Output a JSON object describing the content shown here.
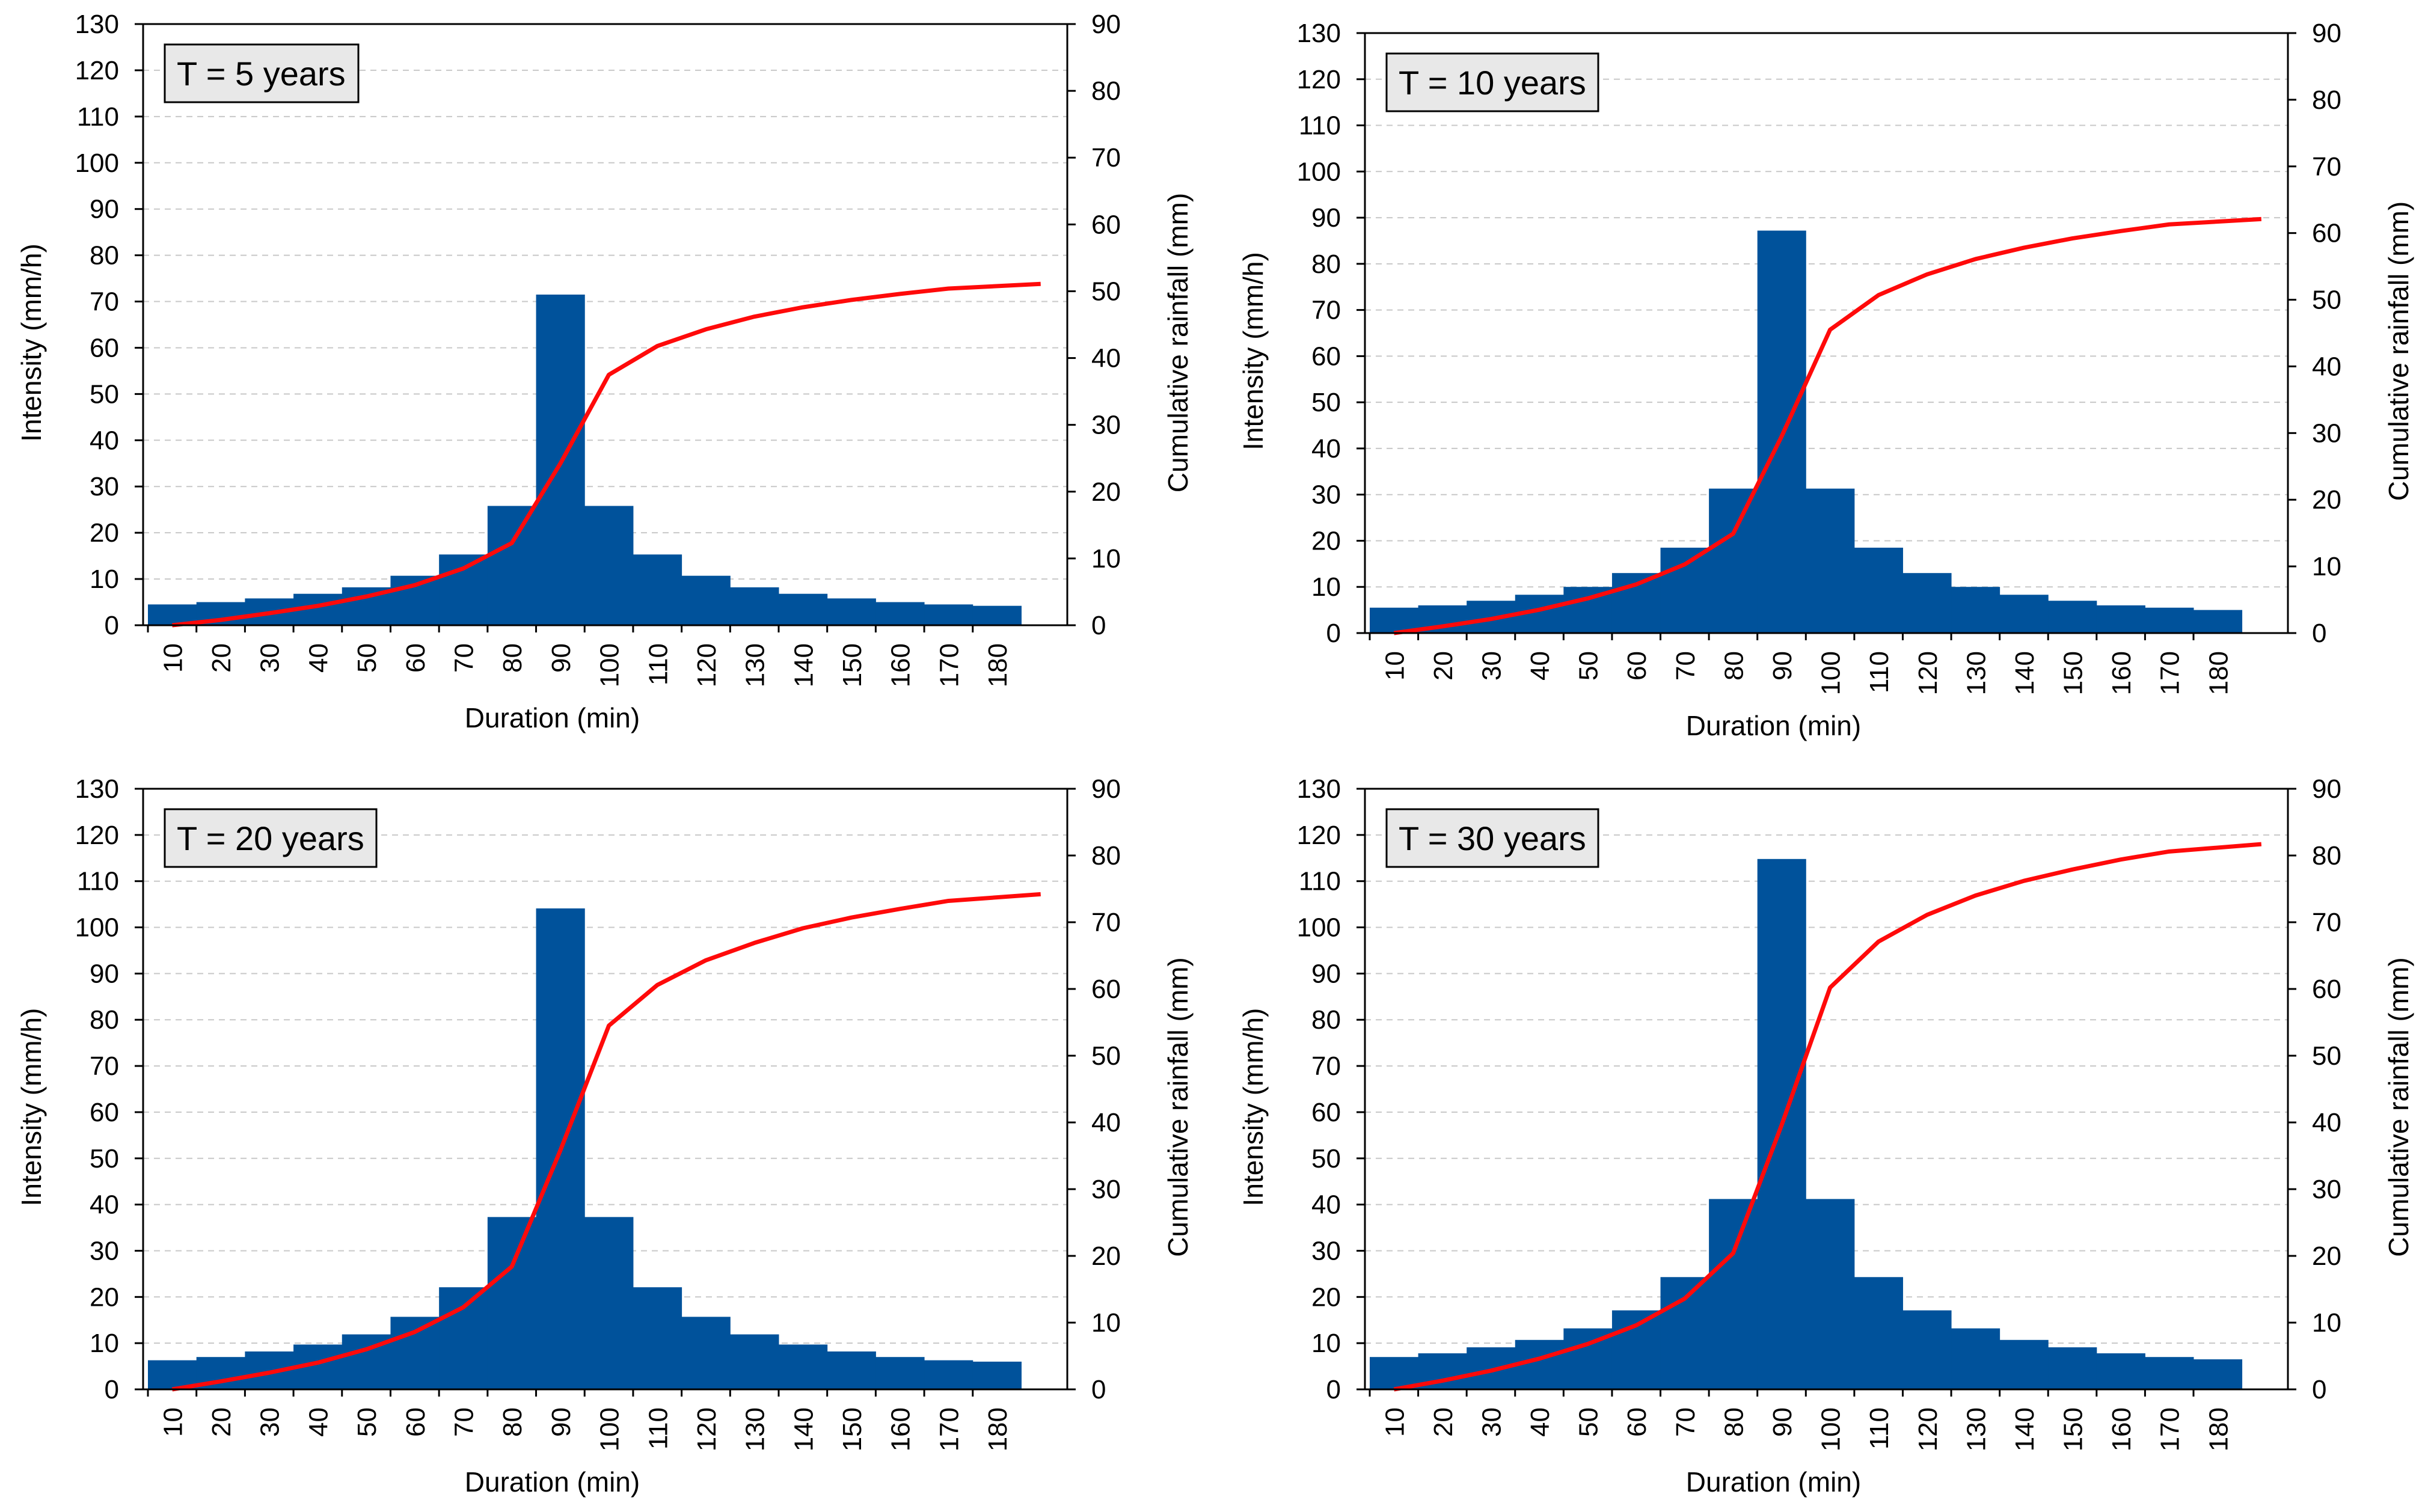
{
  "chart_data": [
    {
      "type": "bar",
      "panel_label": "T = 5 years",
      "xlabel": "Duration (min)",
      "ylabel": "Intensity (mm/h)",
      "y2label": "Cumulative rainfall (mm)",
      "ylim": [
        0,
        130
      ],
      "y2lim": [
        0,
        90
      ],
      "yticks": [
        "0",
        "10",
        "20",
        "30",
        "40",
        "50",
        "60",
        "70",
        "80",
        "90",
        "100",
        "110",
        "120",
        "130"
      ],
      "y2ticks": [
        "0",
        "10",
        "20",
        "30",
        "40",
        "50",
        "60",
        "70",
        "80",
        "90"
      ],
      "categories": [
        "10",
        "20",
        "30",
        "40",
        "50",
        "60",
        "70",
        "80",
        "90",
        "100",
        "110",
        "120",
        "130",
        "140",
        "150",
        "160",
        "170",
        "180"
      ],
      "series": [
        {
          "name": "Intensity",
          "type": "bar",
          "axis": "left",
          "values": [
            4.5,
            5,
            5.8,
            6.8,
            8.2,
            10.7,
            15.3,
            25.8,
            71.5,
            25.8,
            15.3,
            10.7,
            8.2,
            6.8,
            5.8,
            5,
            4.5,
            4.2
          ]
        },
        {
          "name": "Cumulative rainfall",
          "type": "line",
          "axis": "right",
          "values": [
            0,
            0.8,
            1.8,
            2.9,
            4.3,
            6,
            8.5,
            12.3,
            24.2,
            37.5,
            41.8,
            44.3,
            46.2,
            47.6,
            48.7,
            49.6,
            50.4,
            51.1
          ]
        }
      ],
      "grid": true
    },
    {
      "type": "bar",
      "panel_label": "T = 10 years",
      "xlabel": "Duration (min)",
      "ylabel": "Intensity (mm/h)",
      "y2label": "Cumulative rainfall (mm)",
      "ylim": [
        0,
        130
      ],
      "y2lim": [
        0,
        90
      ],
      "yticks": [
        "0",
        "10",
        "20",
        "30",
        "40",
        "50",
        "60",
        "70",
        "80",
        "90",
        "100",
        "110",
        "120",
        "130"
      ],
      "y2ticks": [
        "0",
        "10",
        "20",
        "30",
        "40",
        "50",
        "60",
        "70",
        "80",
        "90"
      ],
      "categories": [
        "10",
        "20",
        "30",
        "40",
        "50",
        "60",
        "70",
        "80",
        "90",
        "100",
        "110",
        "120",
        "130",
        "140",
        "150",
        "160",
        "170",
        "180"
      ],
      "series": [
        {
          "name": "Intensity",
          "type": "bar",
          "axis": "left",
          "values": [
            5.5,
            6,
            7,
            8.3,
            10,
            13,
            18.5,
            31.3,
            87.2,
            31.3,
            18.5,
            13,
            10,
            8.3,
            7,
            6,
            5.5,
            5
          ]
        },
        {
          "name": "Cumulative rainfall",
          "type": "line",
          "axis": "right",
          "values": [
            0,
            1,
            2.1,
            3.5,
            5.2,
            7.3,
            10.3,
            14.9,
            29.5,
            45.5,
            50.7,
            53.8,
            56.1,
            57.8,
            59.2,
            60.3,
            61.3,
            62.1
          ]
        }
      ],
      "grid": true
    },
    {
      "type": "bar",
      "panel_label": "T = 20 years",
      "xlabel": "Duration (min)",
      "ylabel": "Intensity (mm/h)",
      "y2label": "Cumulative rainfall (mm)",
      "ylim": [
        0,
        130
      ],
      "y2lim": [
        0,
        90
      ],
      "yticks": [
        "0",
        "10",
        "20",
        "30",
        "40",
        "50",
        "60",
        "70",
        "80",
        "90",
        "100",
        "110",
        "120",
        "130"
      ],
      "y2ticks": [
        "0",
        "10",
        "20",
        "30",
        "40",
        "50",
        "60",
        "70",
        "80",
        "90"
      ],
      "categories": [
        "10",
        "20",
        "30",
        "40",
        "50",
        "60",
        "70",
        "80",
        "90",
        "100",
        "110",
        "120",
        "130",
        "140",
        "150",
        "160",
        "170",
        "180"
      ],
      "series": [
        {
          "name": "Intensity",
          "type": "bar",
          "axis": "left",
          "values": [
            6.3,
            7,
            8.2,
            9.7,
            11.9,
            15.7,
            22.1,
            37.3,
            104.1,
            37.3,
            22.1,
            15.7,
            11.9,
            9.7,
            8.2,
            7,
            6.3,
            6
          ]
        },
        {
          "name": "Cumulative rainfall",
          "type": "line",
          "axis": "right",
          "values": [
            0,
            1.2,
            2.5,
            4,
            6,
            8.6,
            12.3,
            18.4,
            35.8,
            54.5,
            60.6,
            64.3,
            66.9,
            69.1,
            70.7,
            72,
            73.2,
            74.2
          ]
        }
      ],
      "grid": true
    },
    {
      "type": "bar",
      "panel_label": "T = 30 years",
      "xlabel": "Duration (min)",
      "ylabel": "Intensity (mm/h)",
      "y2label": "Cumulative rainfall (mm)",
      "ylim": [
        0,
        130
      ],
      "y2lim": [
        0,
        90
      ],
      "yticks": [
        "0",
        "10",
        "20",
        "30",
        "40",
        "50",
        "60",
        "70",
        "80",
        "90",
        "100",
        "110",
        "120",
        "130"
      ],
      "y2ticks": [
        "0",
        "10",
        "20",
        "30",
        "40",
        "50",
        "60",
        "70",
        "80",
        "90"
      ],
      "categories": [
        "10",
        "20",
        "30",
        "40",
        "50",
        "60",
        "70",
        "80",
        "90",
        "100",
        "110",
        "120",
        "130",
        "140",
        "150",
        "160",
        "170",
        "180"
      ],
      "series": [
        {
          "name": "Intensity",
          "type": "bar",
          "axis": "left",
          "values": [
            7,
            7.8,
            9.1,
            10.7,
            13.2,
            17.1,
            24.3,
            41.2,
            114.8,
            41.2,
            24.3,
            17.1,
            13.2,
            10.7,
            9.1,
            7.8,
            7,
            6.5
          ]
        },
        {
          "name": "Cumulative rainfall",
          "type": "line",
          "axis": "right",
          "values": [
            0,
            1.3,
            2.8,
            4.6,
            6.8,
            9.6,
            13.6,
            20.4,
            39.6,
            60.2,
            67.1,
            71.1,
            74,
            76.2,
            77.9,
            79.4,
            80.6,
            81.7
          ]
        }
      ],
      "grid": true
    }
  ]
}
